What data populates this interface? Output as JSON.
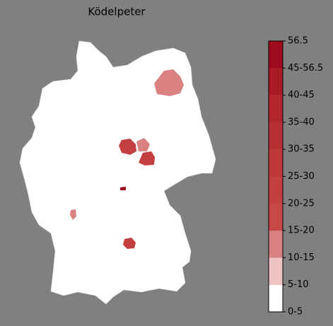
{
  "chart_data": {
    "type": "choropleth",
    "title": "Ködelpeter",
    "colorbar": {
      "ylim": [
        0,
        10
      ],
      "ticks": [
        {
          "value": 0,
          "label": "0-5"
        },
        {
          "value": 1,
          "label": "5-10"
        },
        {
          "value": 2,
          "label": "10-15"
        },
        {
          "value": 3,
          "label": "15-20"
        },
        {
          "value": 4,
          "label": "20-25"
        },
        {
          "value": 5,
          "label": "25-30"
        },
        {
          "value": 6,
          "label": "30-35"
        },
        {
          "value": 7,
          "label": "35-40"
        },
        {
          "value": 8,
          "label": "40-45"
        },
        {
          "value": 9,
          "label": "45-56.5"
        },
        {
          "value": 10,
          "label": "56.5"
        }
      ],
      "colors": [
        "#ffffff",
        "#f0c4c4",
        "#da8282",
        "#c84848",
        "#c43f40",
        "#be3739",
        "#b82f33",
        "#b2262c",
        "#aa1a24",
        "#9e0b1e"
      ]
    }
  }
}
